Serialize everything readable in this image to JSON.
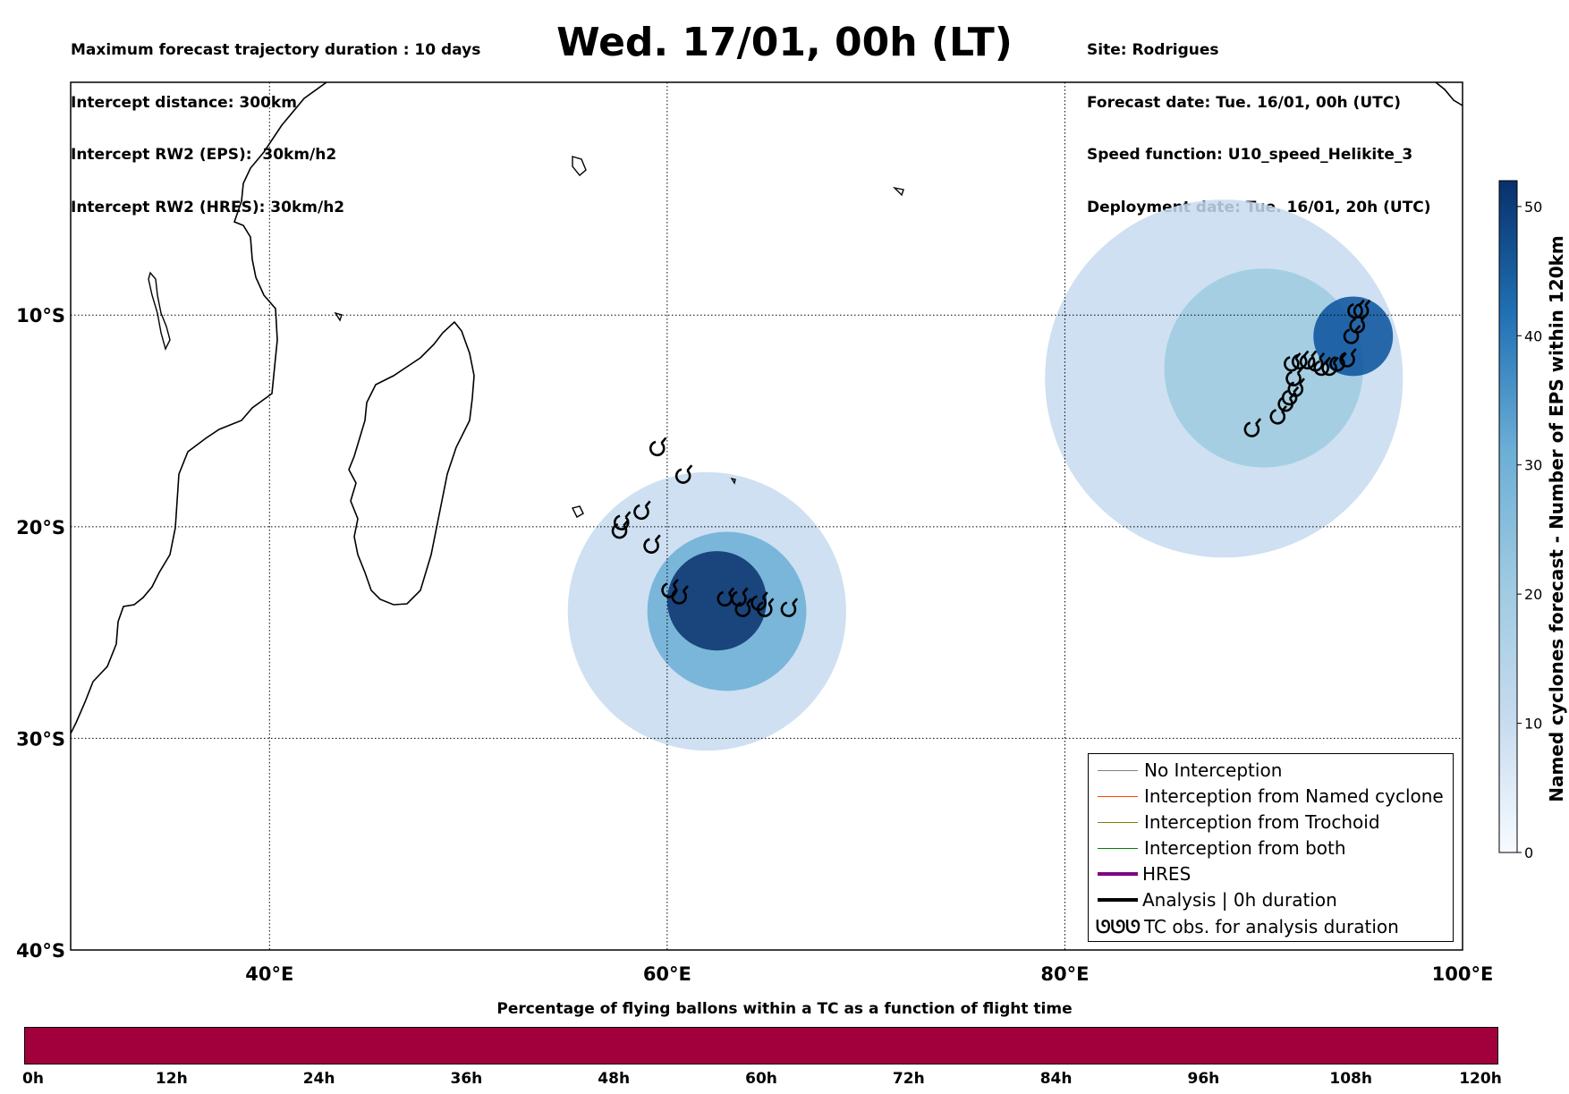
{
  "header_left": [
    "Maximum forecast trajectory duration : 10 days",
    "Intercept distance: 300km",
    "Intercept RW2 (EPS):  30km/h2",
    "Intercept RW2 (HRES): 30km/h2"
  ],
  "header_right": [
    "Site: Rodrigues",
    "Forecast date: Tue. 16/01, 00h (UTC)",
    "Speed function: U10_speed_Helikite_3",
    "Deployment date: Tue. 16/01, 20h (UTC)"
  ],
  "title": "Wed. 17/01, 00h (LT)",
  "map": {
    "lon_range": [
      30,
      100
    ],
    "lat_range": [
      -40,
      1
    ],
    "grid": true,
    "lon_ticks": [
      {
        "value": 40,
        "label": "40°E"
      },
      {
        "value": 60,
        "label": "60°E"
      },
      {
        "value": 80,
        "label": "80°E"
      },
      {
        "value": 100,
        "label": "100°E"
      }
    ],
    "lat_ticks": [
      {
        "value": -10,
        "label": "10°S"
      },
      {
        "value": -20,
        "label": "20°S"
      },
      {
        "value": -30,
        "label": "30°S"
      },
      {
        "value": -40,
        "label": "40°S"
      }
    ],
    "density_regions": [
      {
        "lon": 62.5,
        "lat": -23.5,
        "r": 2.5,
        "level": 50
      },
      {
        "lon": 63,
        "lat": -24,
        "r": 4,
        "level": 30
      },
      {
        "lon": 62,
        "lat": -24,
        "r": 7,
        "level": 8
      },
      {
        "lon": 94.5,
        "lat": -11,
        "r": 2,
        "level": 45
      },
      {
        "lon": 90,
        "lat": -12.5,
        "r": 5,
        "level": 15
      },
      {
        "lon": 88,
        "lat": -13,
        "r": 9,
        "level": 5
      }
    ],
    "tc_obs": [
      [
        59.5,
        -16.3
      ],
      [
        60.8,
        -17.6
      ],
      [
        58.7,
        -19.3
      ],
      [
        57.7,
        -19.8
      ],
      [
        57.6,
        -20.2
      ],
      [
        59.2,
        -20.9
      ],
      [
        60.1,
        -23.0
      ],
      [
        60.6,
        -23.3
      ],
      [
        62.9,
        -23.4
      ],
      [
        63.6,
        -23.4
      ],
      [
        63.8,
        -23.9
      ],
      [
        64.6,
        -23.6
      ],
      [
        64.9,
        -23.9
      ],
      [
        66.1,
        -23.9
      ],
      [
        89.4,
        -15.4
      ],
      [
        90.7,
        -14.8
      ],
      [
        91.1,
        -14.2
      ],
      [
        91.3,
        -13.9
      ],
      [
        91.6,
        -13.5
      ],
      [
        91.5,
        -13.0
      ],
      [
        91.4,
        -12.3
      ],
      [
        91.8,
        -12.2
      ],
      [
        92.2,
        -12.2
      ],
      [
        92.6,
        -12.3
      ],
      [
        92.9,
        -12.5
      ],
      [
        93.3,
        -12.5
      ],
      [
        93.7,
        -12.3
      ],
      [
        94.2,
        -12.1
      ],
      [
        94.4,
        -11.0
      ],
      [
        94.7,
        -10.5
      ],
      [
        94.6,
        -9.8
      ],
      [
        94.9,
        -9.8
      ]
    ]
  },
  "colorbar": {
    "label": "Named cyclones forecast - Number of EPS within 120km",
    "min": 0,
    "max": 52,
    "ticks": [
      "0",
      "10",
      "20",
      "30",
      "40",
      "50"
    ],
    "colors": [
      "#e3eef9",
      "#c6dbef",
      "#9ecae1",
      "#6baed6",
      "#3182bd",
      "#08519c",
      "#08306b"
    ]
  },
  "legend": {
    "items": [
      {
        "label": "No Interception",
        "color": "#808080"
      },
      {
        "label": "Interception from Named cyclone",
        "color": "#ff4500"
      },
      {
        "label": "Interception from Trochoid",
        "color": "#808000"
      },
      {
        "label": "Interception from both",
        "color": "#008000"
      },
      {
        "label": "HRES",
        "color": "#800080"
      },
      {
        "label": "Analysis | 0h duration",
        "color": "#000000"
      },
      {
        "label": "TC obs. for analysis duration",
        "color": "#000000",
        "symbol": "ᘎᘎᘎ"
      }
    ]
  },
  "flight": {
    "title": "Percentage of flying ballons within a TC as a function of flight time",
    "bar_color": "#a1003d",
    "ticks": [
      "0h",
      "12h",
      "24h",
      "36h",
      "48h",
      "60h",
      "72h",
      "84h",
      "96h",
      "108h",
      "120h"
    ]
  }
}
